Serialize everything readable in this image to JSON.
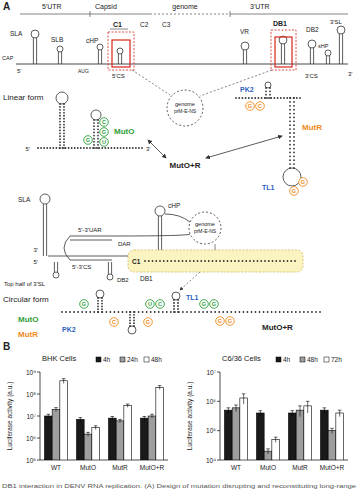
{
  "panel_a": {
    "label": "A",
    "schematic": {
      "utr5": "5'UTR",
      "capsid": "Capsid",
      "genome": "genome",
      "utr3": "3'UTR",
      "c1": "C1",
      "c2": "C2",
      "c3": "C3",
      "db1": "DB1",
      "db2": "DB2",
      "vr": "VR",
      "sla": "SLA",
      "slb": "SLB",
      "cap": "CAP",
      "chp": "cHP",
      "cs5": "5'CS",
      "cs3": "3'CS",
      "shp": "sHP",
      "sl3": "3'SL",
      "end5": "5'",
      "end3": "3'",
      "aug": "AUG"
    },
    "linear": {
      "title": "Linear form",
      "muto": "MutO",
      "mutr": "MutR",
      "mutor": "MutO+R",
      "pk2": "PK2",
      "tl1": "TL1",
      "genome": "genome",
      "genome_sub": "prM-E-NS",
      "end5": "5'",
      "end3": "3'",
      "muto_nts": [
        "C",
        "G",
        "U",
        "G"
      ],
      "mutr_nts": [
        "G",
        "C",
        "G",
        "G"
      ]
    },
    "circular": {
      "title": "Circular form",
      "sla": "SLA",
      "chp": "cHP",
      "uar": "5'-3'UAR",
      "dar": "DAR",
      "cs": "5'-3'CS",
      "top3sl": "Top half of 3'SL",
      "db2": "DB2",
      "c1": "C1",
      "db1": "DB1",
      "genome": "genome",
      "genome_sub": "prM-E-NS",
      "muto": "MutO",
      "mutr": "MutR",
      "mutor": "MutO+R",
      "pk2": "PK2",
      "tl1": "TL1",
      "end5": "5'",
      "end3": "3'",
      "muto_nts": [
        "G",
        "U",
        "C",
        "G",
        "G"
      ],
      "mutr_nts": [
        "C",
        "G",
        "G",
        "G"
      ]
    }
  },
  "panel_b": {
    "label": "B"
  },
  "chart_data": [
    {
      "type": "bar",
      "title": "BHK Cells",
      "y_label": "Luciferase activity (a.u.)",
      "categories": [
        "WT",
        "MutO",
        "MutR",
        "MutO+R"
      ],
      "series": [
        {
          "name": "4h",
          "color": "#1a1a1a",
          "values": [
            10000000,
            7000000,
            8000000,
            8000000
          ],
          "errors": [
            2000000,
            1500000,
            1500000,
            1500000
          ]
        },
        {
          "name": "24h",
          "color": "#9e9e9e",
          "values": [
            20000000,
            1500000,
            6000000,
            10000000
          ],
          "errors": [
            4000000,
            300000,
            1000000,
            2000000
          ]
        },
        {
          "name": "48h",
          "color": "#ffffff",
          "values": [
            400000000,
            3000000,
            30000000,
            200000000
          ],
          "errors": [
            100000000,
            600000,
            5000000,
            40000000
          ]
        }
      ],
      "log": "y",
      "legend": "top",
      "ylim": [
        100000,
        1000000000
      ],
      "yticks": [
        {
          "value": 100000,
          "label": "10⁵"
        },
        {
          "value": 1000000,
          "label": "10⁶"
        },
        {
          "value": 10000000,
          "label": "10⁷"
        },
        {
          "value": 100000000,
          "label": "10⁸"
        },
        {
          "value": 1000000000,
          "label": "10⁹"
        }
      ]
    },
    {
      "type": "bar",
      "title": "C6/36 Cells",
      "y_label": "Luciferase activity (a.u.)",
      "categories": [
        "WT",
        "MutO",
        "MutR",
        "MutO+R"
      ],
      "series": [
        {
          "name": "4h",
          "color": "#1a1a1a",
          "values": [
            500000,
            400000,
            400000,
            500000
          ],
          "errors": [
            100000,
            80000,
            80000,
            100000
          ]
        },
        {
          "name": "48h",
          "color": "#9e9e9e",
          "values": [
            600000,
            20000,
            500000,
            100000
          ],
          "errors": [
            150000,
            4000,
            200000,
            20000
          ]
        },
        {
          "name": "72h",
          "color": "#ffffff",
          "values": [
            1300000,
            50000,
            700000,
            400000
          ],
          "errors": [
            500000,
            10000,
            300000,
            100000
          ]
        }
      ],
      "log": "y",
      "legend": "top",
      "ylim": [
        10000,
        10000000
      ],
      "yticks": [
        {
          "value": 10000,
          "label": "10⁴"
        },
        {
          "value": 100000,
          "label": "10⁵"
        },
        {
          "value": 1000000,
          "label": "10⁶"
        },
        {
          "value": 10000000,
          "label": "10⁷"
        }
      ]
    }
  ],
  "caption": "DB1 interaction in DENV RNA replication. (A) Design of mutation disrupting and reconstituting long-range"
}
